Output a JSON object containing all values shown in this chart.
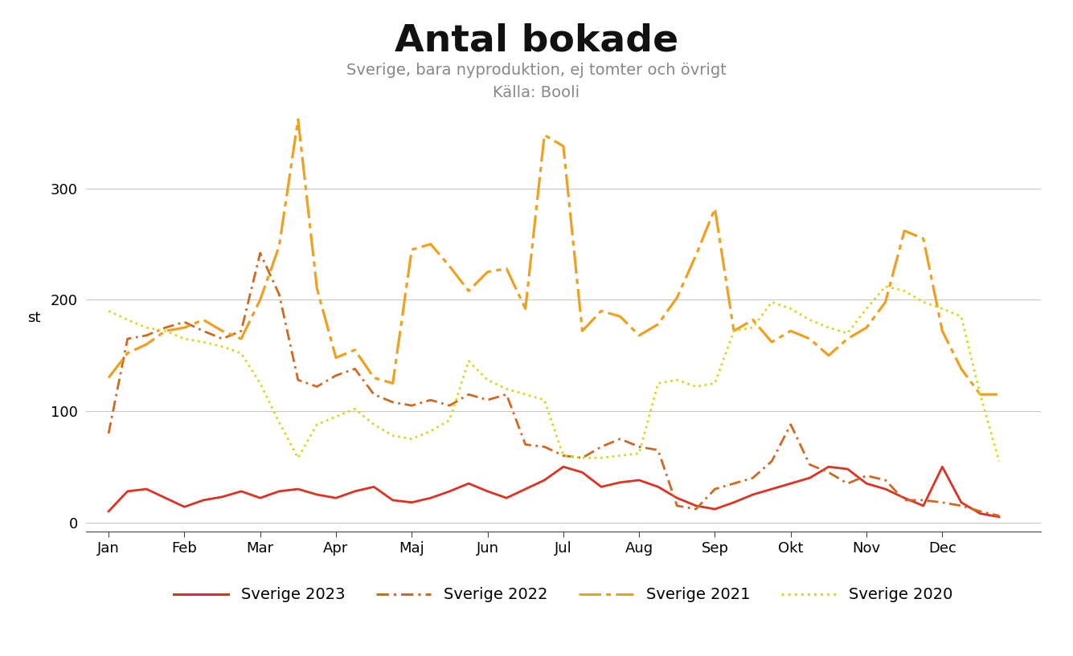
{
  "title": "Antal bokade",
  "subtitle1": "Sverige, bara nyproduktion, ej tomter och övrigt",
  "subtitle2": "Källa: Booli",
  "ylabel": "st",
  "xlabel_months": [
    "Jan",
    "Feb",
    "Mar",
    "Apr",
    "Maj",
    "Jun",
    "Jul",
    "Aug",
    "Sep",
    "Okt",
    "Nov",
    "Dec"
  ],
  "yticks": [
    0,
    100,
    200,
    300
  ],
  "ylim": [
    -8,
    375
  ],
  "background_color": "#ffffff",
  "grid_color": "#c8c8c8",
  "sweden_2023": [
    10,
    28,
    30,
    22,
    14,
    20,
    23,
    28,
    22,
    28,
    30,
    25,
    22,
    28,
    32,
    20,
    18,
    22,
    28,
    35,
    28,
    22,
    30,
    38,
    50,
    45,
    32,
    36,
    38,
    32,
    22,
    15,
    12,
    18,
    25,
    30,
    35,
    40,
    50,
    48,
    35,
    30,
    22,
    15,
    50,
    18,
    8,
    5
  ],
  "sweden_2022": [
    80,
    165,
    168,
    175,
    180,
    172,
    165,
    172,
    242,
    205,
    128,
    122,
    132,
    138,
    115,
    108,
    105,
    110,
    105,
    115,
    110,
    115,
    70,
    68,
    60,
    58,
    68,
    75,
    68,
    65,
    15,
    12,
    30,
    35,
    40,
    55,
    88,
    52,
    45,
    35,
    42,
    38,
    20,
    20,
    18,
    15,
    10,
    6
  ],
  "sweden_2021": [
    130,
    152,
    160,
    172,
    175,
    182,
    172,
    165,
    200,
    248,
    362,
    210,
    148,
    155,
    130,
    125,
    245,
    250,
    230,
    208,
    225,
    228,
    192,
    348,
    338,
    172,
    190,
    185,
    168,
    178,
    202,
    240,
    282,
    172,
    182,
    162,
    172,
    165,
    150,
    165,
    175,
    198,
    262,
    255,
    172,
    138,
    115,
    115
  ],
  "sweden_2020": [
    190,
    182,
    175,
    172,
    165,
    162,
    158,
    152,
    125,
    90,
    58,
    88,
    95,
    102,
    88,
    78,
    75,
    82,
    92,
    145,
    128,
    120,
    115,
    110,
    60,
    58,
    58,
    60,
    62,
    125,
    128,
    122,
    125,
    172,
    175,
    198,
    192,
    182,
    175,
    170,
    192,
    212,
    208,
    198,
    192,
    185,
    115,
    55
  ],
  "color_2023": "#e03020",
  "color_2022": "#d06820",
  "color_2021": "#f0a020",
  "color_2020": "#d8d820",
  "legend_labels": [
    "Sverige 2023",
    "Sverige 2022",
    "Sverige 2021",
    "Sverige 2020"
  ]
}
